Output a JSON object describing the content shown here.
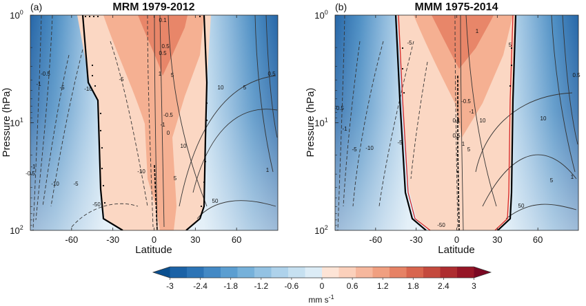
{
  "chart_data": {
    "type": "heatmap",
    "panels": [
      {
        "label": "(a)",
        "title": "MRM 1979-2012",
        "xlabel": "Latitude",
        "ylabel": "Pressure (hPa)",
        "xlim": [
          -90,
          90
        ],
        "x_ticks": [
          "-60",
          "-30",
          "0",
          "30",
          "60"
        ],
        "y_scale": "log",
        "ylim": [
          100,
          1
        ],
        "y_ticks": [
          {
            "base": "10",
            "exp": "0"
          },
          {
            "base": "10",
            "exp": "1"
          },
          {
            "base": "10",
            "exp": "2"
          }
        ],
        "contour_labels": [
          "-0.5",
          "-1",
          "-5",
          "-10",
          "-5",
          "-10",
          "-5",
          "-1",
          "-0.5",
          "-10",
          "-50",
          "0.1",
          "0.5",
          "1",
          "0.5",
          "5",
          "10",
          "5",
          "1",
          "0.5",
          "10",
          "5",
          "50",
          "-0.5",
          "-1",
          "0"
        ],
        "zero_line_color": "#000000"
      },
      {
        "label": "(b)",
        "title": "MMM 1975-2014",
        "xlabel": "Latitude",
        "ylabel": "Pressure (hPa)",
        "xlim": [
          -90,
          90
        ],
        "x_ticks": [
          "-60",
          "-30",
          "0",
          "30",
          "60"
        ],
        "y_scale": "log",
        "ylim": [
          100,
          1
        ],
        "y_ticks": [
          {
            "base": "10",
            "exp": "0"
          },
          {
            "base": "10",
            "exp": "1"
          },
          {
            "base": "10",
            "exp": "2"
          }
        ],
        "contour_labels": [
          "-5",
          "-0.5",
          "-1",
          "-5",
          "-10",
          "-5",
          "-50",
          "1",
          "5",
          "10",
          "5",
          "1",
          "0.5",
          "10",
          "5",
          "50",
          "-0.5",
          "-1",
          "0.1",
          "0.5",
          "1"
        ],
        "zero_line_color": "#000000",
        "comparison_line_color": "#d62728"
      }
    ],
    "colorbar": {
      "min": -3,
      "max": 3,
      "step": 0.3,
      "ticks": [
        "-3",
        "-2.4",
        "-1.8",
        "-1.2",
        "-0.6",
        "0",
        "0.6",
        "1.2",
        "1.8",
        "2.4",
        "3"
      ],
      "unit": {
        "base": "mm s",
        "exp": "-1"
      },
      "colors": [
        "#0a4f8f",
        "#1b62a6",
        "#2c74b6",
        "#4389c5",
        "#5b9ed1",
        "#76b1da",
        "#93c2e3",
        "#aed2eb",
        "#c6e0f0",
        "#dcecf6",
        "#fde4d6",
        "#fbd0bb",
        "#f6b79d",
        "#f09f80",
        "#e68265",
        "#d8654e",
        "#c44a3e",
        "#ae2d30",
        "#961626",
        "#7a0822"
      ]
    }
  }
}
